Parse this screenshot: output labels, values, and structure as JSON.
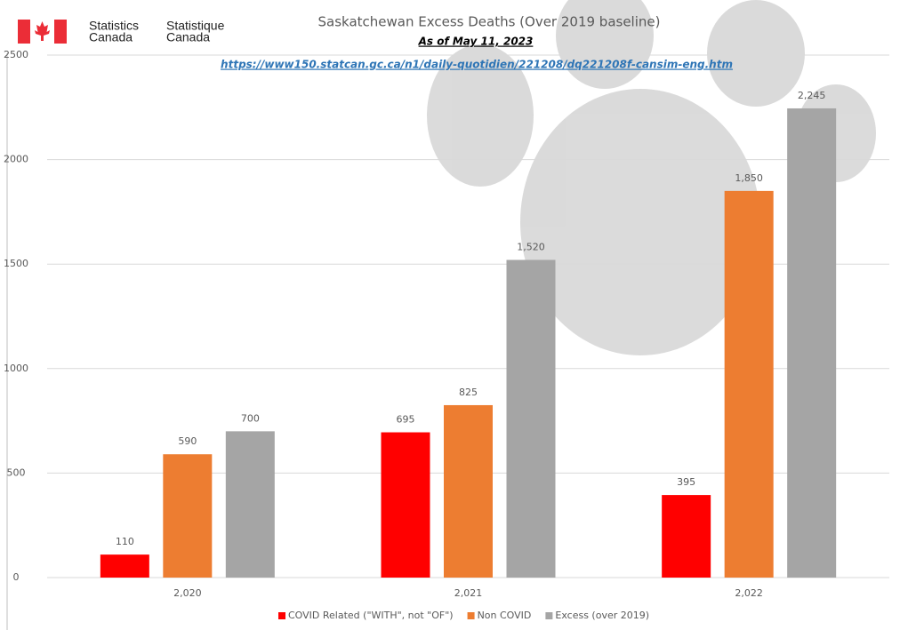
{
  "logo": {
    "english": [
      "Statistics",
      "Canada"
    ],
    "french": [
      "Statistique",
      "Canada"
    ]
  },
  "chart_data": {
    "type": "bar",
    "title": "Saskatchewan Excess Deaths (Over 2019 baseline)",
    "subtitle": "As of May 11, 2023",
    "source_link": "https://www150.statcan.gc.ca/n1/daily-quotidien/221208/dq221208f-cansim-eng.htm",
    "categories": [
      "2,020",
      "2,021",
      "2,022"
    ],
    "series": [
      {
        "name": "COVID Related (\"WITH\", not \"OF\")",
        "color": "#ff0000",
        "values": [
          110,
          695,
          395
        ]
      },
      {
        "name": "Non COVID",
        "color": "#ed7d31",
        "values": [
          590,
          825,
          1850
        ],
        "value_labels": [
          "590",
          "825",
          "1,850"
        ]
      },
      {
        "name": "Excess (over 2019)",
        "color": "#a5a5a5",
        "values": [
          700,
          1520,
          2245
        ],
        "value_labels": [
          "700",
          "1,520",
          "2,245"
        ]
      }
    ],
    "ylim": [
      0,
      2500
    ],
    "yticks": [
      0,
      500,
      1000,
      1500,
      2000,
      2500
    ],
    "grid": true,
    "legend": "bottom"
  }
}
